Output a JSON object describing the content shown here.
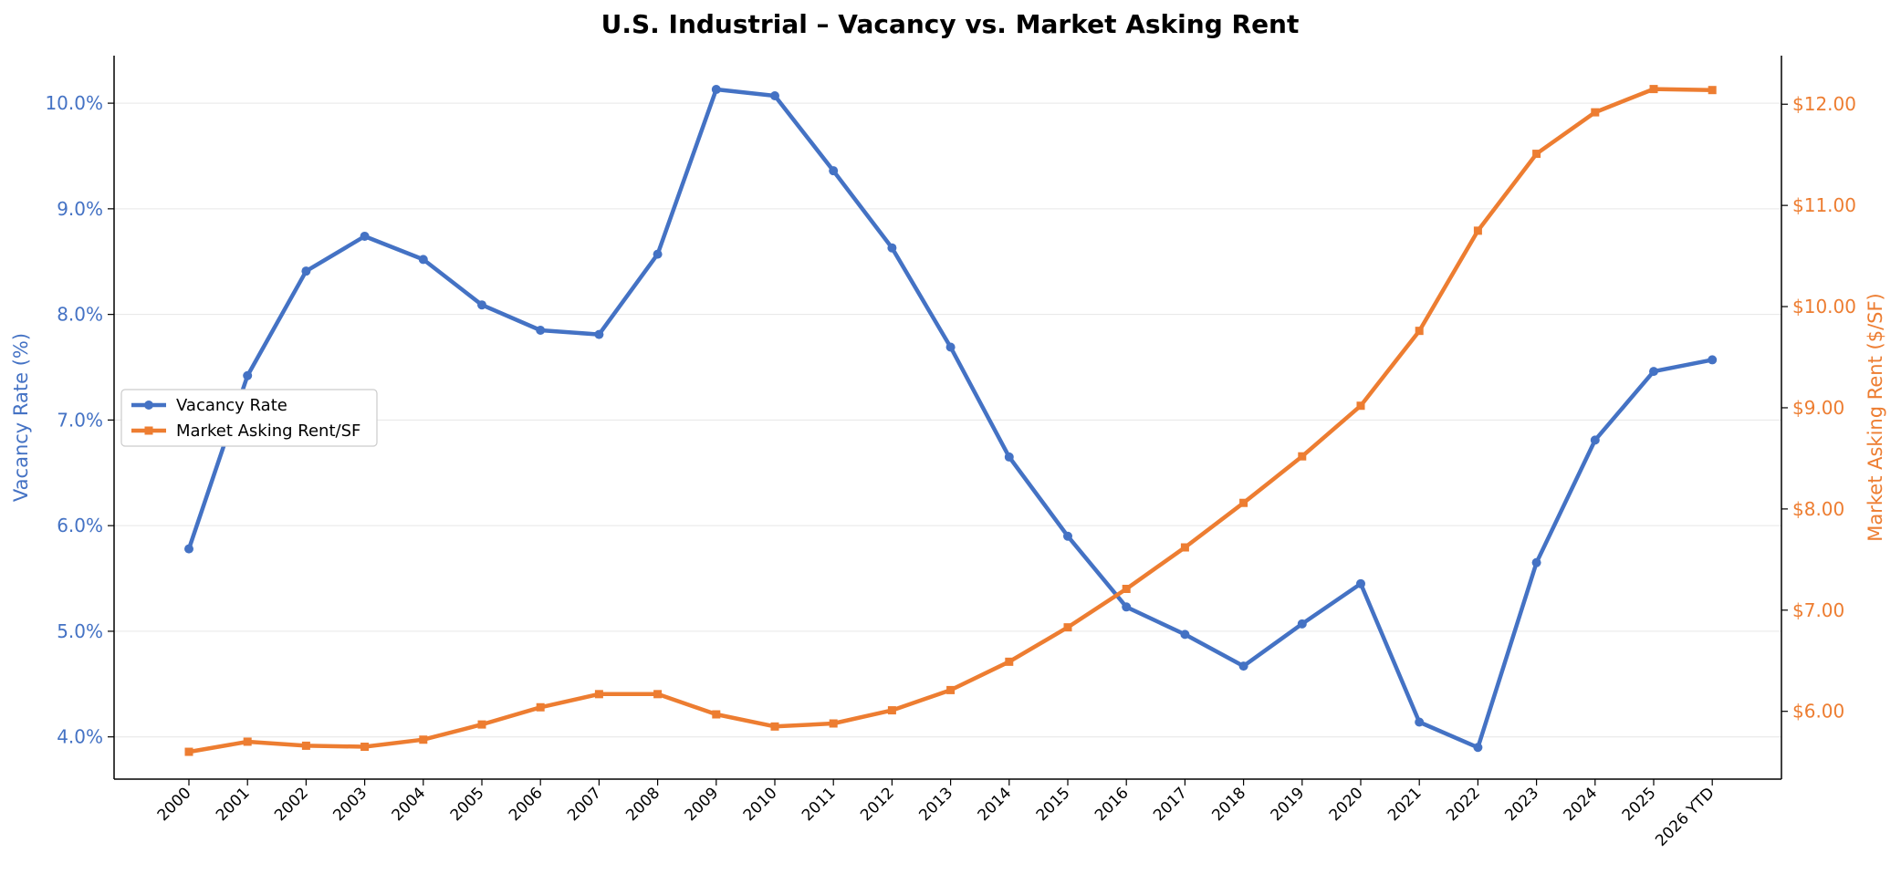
{
  "chart_data": {
    "type": "line",
    "title": "U.S. Industrial – Vacancy vs. Market Asking Rent",
    "categories": [
      "2000",
      "2001",
      "2002",
      "2003",
      "2004",
      "2005",
      "2006",
      "2007",
      "2008",
      "2009",
      "2010",
      "2011",
      "2012",
      "2013",
      "2014",
      "2015",
      "2016",
      "2017",
      "2018",
      "2019",
      "2020",
      "2021",
      "2022",
      "2023",
      "2024",
      "2025",
      "2026 YTD"
    ],
    "series": [
      {
        "name": "Vacancy Rate",
        "axis": "left",
        "color": "#4472C4",
        "marker": "circle",
        "values": [
          5.78,
          7.42,
          8.41,
          8.74,
          8.52,
          8.09,
          7.85,
          7.81,
          8.57,
          10.13,
          10.07,
          9.36,
          8.63,
          7.69,
          6.65,
          5.9,
          5.23,
          4.97,
          4.67,
          5.07,
          5.45,
          4.14,
          3.9,
          5.65,
          6.81,
          7.46,
          7.57
        ]
      },
      {
        "name": "Market Asking Rent/SF",
        "axis": "right",
        "color": "#ED7D31",
        "marker": "square",
        "values": [
          5.6,
          5.7,
          5.66,
          5.65,
          5.72,
          5.87,
          6.04,
          6.17,
          6.17,
          5.97,
          5.85,
          5.88,
          6.01,
          6.21,
          6.49,
          6.83,
          7.21,
          7.62,
          8.06,
          8.52,
          9.02,
          9.76,
          10.75,
          11.51,
          11.92,
          12.15,
          12.14
        ]
      }
    ],
    "left_axis": {
      "label": "Vacancy Rate (%)",
      "ylim": [
        3.6,
        10.45
      ],
      "ticks": [
        4.0,
        5.0,
        6.0,
        7.0,
        8.0,
        9.0,
        10.0
      ],
      "tick_labels": [
        "4.0%",
        "5.0%",
        "6.0%",
        "7.0%",
        "8.0%",
        "9.0%",
        "10.0%"
      ]
    },
    "right_axis": {
      "label": "Market Asking Rent ($/SF)",
      "ylim": [
        5.33,
        12.48
      ],
      "ticks": [
        6,
        7,
        8,
        9,
        10,
        11,
        12
      ],
      "tick_labels": [
        "$6.00",
        "$7.00",
        "$8.00",
        "$9.00",
        "$10.00",
        "$11.00",
        "$12.00"
      ]
    },
    "grid": true,
    "legend_position": "center-left"
  }
}
